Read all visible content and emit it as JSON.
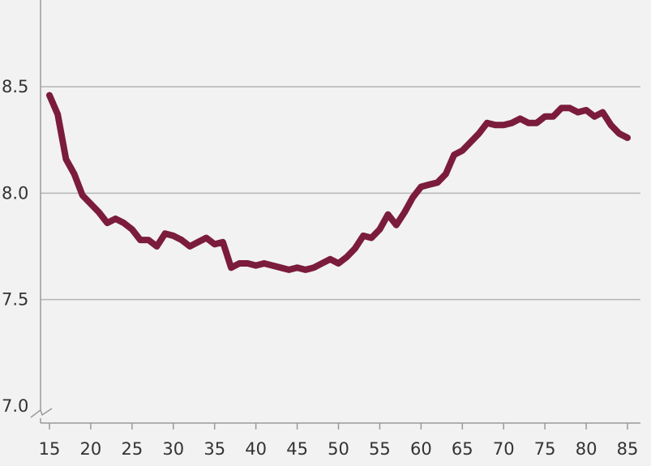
{
  "chart_data": {
    "type": "line",
    "title": "",
    "xlabel": "",
    "ylabel": "",
    "xlim": [
      15,
      85
    ],
    "ylim": [
      7.0,
      8.5
    ],
    "y_axis_break": true,
    "grid": "horizontal",
    "x_ticks": [
      15,
      20,
      25,
      30,
      35,
      40,
      45,
      50,
      55,
      60,
      65,
      70,
      75,
      80,
      85
    ],
    "x_tick_labels": [
      "15",
      "20",
      "25",
      "30",
      "35",
      "40",
      "45",
      "50",
      "55",
      "60",
      "65",
      "70",
      "75",
      "80",
      "85"
    ],
    "y_ticks": [
      7.0,
      7.5,
      8.0,
      8.5
    ],
    "y_tick_labels": [
      "7.0",
      "7.5",
      "8.0",
      "8.5"
    ],
    "series": [
      {
        "color": "#7b1c3c",
        "x": [
          15,
          16,
          17,
          18,
          19,
          20,
          21,
          22,
          23,
          24,
          25,
          26,
          27,
          28,
          29,
          30,
          31,
          32,
          33,
          34,
          35,
          36,
          37,
          38,
          39,
          40,
          41,
          42,
          43,
          44,
          45,
          46,
          47,
          48,
          49,
          50,
          51,
          52,
          53,
          54,
          55,
          56,
          57,
          58,
          59,
          60,
          61,
          62,
          63,
          64,
          65,
          66,
          67,
          68,
          69,
          70,
          71,
          72,
          73,
          74,
          75,
          76,
          77,
          78,
          79,
          80,
          81,
          82,
          83,
          84,
          85
        ],
        "y": [
          8.46,
          8.37,
          8.16,
          8.09,
          7.99,
          7.95,
          7.91,
          7.86,
          7.88,
          7.86,
          7.83,
          7.78,
          7.78,
          7.75,
          7.81,
          7.8,
          7.78,
          7.75,
          7.77,
          7.79,
          7.76,
          7.77,
          7.65,
          7.67,
          7.67,
          7.66,
          7.67,
          7.66,
          7.65,
          7.64,
          7.65,
          7.64,
          7.65,
          7.67,
          7.69,
          7.67,
          7.7,
          7.74,
          7.8,
          7.79,
          7.83,
          7.9,
          7.85,
          7.91,
          7.98,
          8.03,
          8.04,
          8.05,
          8.09,
          8.18,
          8.2,
          8.24,
          8.28,
          8.33,
          8.32,
          8.32,
          8.33,
          8.35,
          8.33,
          8.33,
          8.36,
          8.36,
          8.4,
          8.4,
          8.38,
          8.39,
          8.36,
          8.38,
          8.32,
          8.28,
          8.26
        ]
      }
    ]
  }
}
